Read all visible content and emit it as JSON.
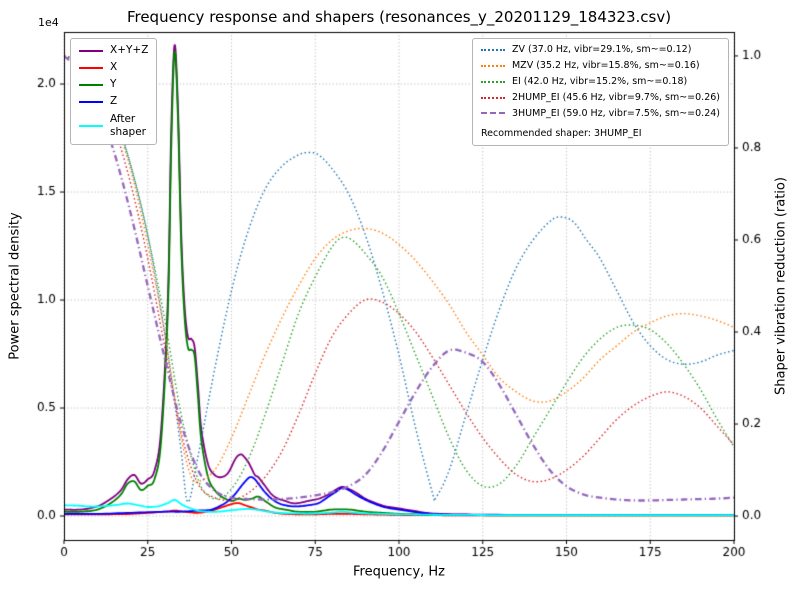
{
  "chart_data": {
    "type": "line",
    "title": "Frequency response and shapers (resonances_y_20201129_184323.csv)",
    "xlabel": "Frequency, Hz",
    "ylabel_left": "Power spectral density",
    "ylabel_right": "Shaper vibration reduction (ratio)",
    "offset_text": "1e4",
    "grid": "dotted",
    "grid_color": "#b8b8b8",
    "xlim": [
      0,
      200
    ],
    "xticks": [
      0,
      25,
      50,
      75,
      100,
      125,
      150,
      175,
      200
    ],
    "xtick_labels": [
      "0",
      "25",
      "50",
      "75",
      "100",
      "125",
      "150",
      "175",
      "200"
    ],
    "ylim_left": [
      -0.111,
      2.241
    ],
    "yticks_left": {
      "values": [
        0.0,
        0.5,
        1.0,
        1.5,
        2.0
      ],
      "labels": [
        "0.0",
        "0.5",
        "1.0",
        "1.5",
        "2.0"
      ]
    },
    "ylim_right": [
      -0.052,
      1.052
    ],
    "yticks_right": {
      "values": [
        0.0,
        0.2,
        0.4,
        0.6,
        0.8,
        1.0
      ],
      "labels": [
        "0.0",
        "0.2",
        "0.4",
        "0.6",
        "0.8",
        "1.0"
      ]
    },
    "legend_psd": {
      "position": "upper left",
      "items": [
        {
          "label": "X+Y+Z",
          "color": "#800080",
          "style": "solid"
        },
        {
          "label": "X",
          "color": "#ff0000",
          "style": "solid"
        },
        {
          "label": "Y",
          "color": "#008000",
          "style": "solid"
        },
        {
          "label": "Z",
          "color": "#0000ff",
          "style": "solid"
        },
        {
          "label": "After\nshaper",
          "color": "#00ffff",
          "style": "solid"
        }
      ]
    },
    "legend_shapers": {
      "position": "upper right",
      "items": [
        {
          "label": "ZV (37.0 Hz, vibr=29.1%, sm~=0.12)",
          "color": "#1f77b4",
          "style": "dotted"
        },
        {
          "label": "MZV (35.2 Hz, vibr=15.8%, sm~=0.16)",
          "color": "#ff7f0e",
          "style": "dotted"
        },
        {
          "label": "EI (42.0 Hz, vibr=15.2%, sm~=0.18)",
          "color": "#2ca02c",
          "style": "dotted"
        },
        {
          "label": "2HUMP_EI (45.6 Hz, vibr=9.7%, sm~=0.26)",
          "color": "#d62728",
          "style": "dotted"
        },
        {
          "label": "3HUMP_EI (59.0 Hz, vibr=7.5%, sm~=0.24)",
          "color": "#9467bd",
          "style": "dashdot"
        }
      ],
      "footer": "Recommended shaper: 3HUMP_EI"
    },
    "series": [
      {
        "name": "X+Y+Z",
        "axis": "left",
        "color": "#800080",
        "style": "solid",
        "width": 1.8,
        "x": [
          0,
          5,
          10,
          14,
          17,
          19,
          21,
          23,
          25,
          27,
          29,
          31,
          32,
          33,
          34,
          35,
          36,
          37,
          38,
          39,
          40,
          41,
          43,
          45,
          47,
          49,
          51,
          52,
          53,
          54,
          55,
          56,
          57,
          58,
          59,
          60,
          62,
          64,
          66,
          68,
          70,
          73,
          76,
          79,
          81,
          83,
          85,
          87,
          90,
          93,
          96,
          100,
          104,
          108,
          112,
          120,
          140,
          160,
          180,
          200
        ],
        "y": [
          0.03,
          0.03,
          0.045,
          0.08,
          0.12,
          0.17,
          0.19,
          0.15,
          0.17,
          0.21,
          0.4,
          1.0,
          1.78,
          2.18,
          1.9,
          1.3,
          0.97,
          0.83,
          0.82,
          0.78,
          0.6,
          0.4,
          0.24,
          0.19,
          0.18,
          0.2,
          0.26,
          0.28,
          0.285,
          0.27,
          0.25,
          0.22,
          0.19,
          0.18,
          0.16,
          0.14,
          0.1,
          0.08,
          0.07,
          0.06,
          0.06,
          0.07,
          0.08,
          0.1,
          0.12,
          0.135,
          0.125,
          0.11,
          0.08,
          0.06,
          0.045,
          0.035,
          0.025,
          0.015,
          0.01,
          0.007,
          0.005,
          0.005,
          0.005,
          0.005
        ]
      },
      {
        "name": "X",
        "axis": "left",
        "color": "#ff0000",
        "style": "solid",
        "width": 1.8,
        "x": [
          0,
          10,
          20,
          30,
          33,
          36,
          40,
          44,
          47,
          50,
          52,
          54,
          56,
          58,
          60,
          63,
          66,
          70,
          75,
          80,
          85,
          90,
          100,
          110,
          120,
          140,
          160,
          180,
          200
        ],
        "y": [
          0.008,
          0.008,
          0.01,
          0.02,
          0.025,
          0.02,
          0.015,
          0.025,
          0.04,
          0.055,
          0.06,
          0.05,
          0.04,
          0.03,
          0.025,
          0.015,
          0.01,
          0.008,
          0.008,
          0.01,
          0.01,
          0.008,
          0.005,
          0.004,
          0.003,
          0.003,
          0.003,
          0.003,
          0.003
        ]
      },
      {
        "name": "Y",
        "axis": "left",
        "color": "#008000",
        "style": "solid",
        "width": 1.8,
        "x": [
          0,
          5,
          10,
          14,
          17,
          19,
          21,
          23,
          25,
          27,
          29,
          31,
          32,
          33,
          34,
          35,
          36,
          37,
          38,
          39,
          40,
          41,
          43,
          45,
          47,
          50,
          52,
          54,
          56,
          58,
          60,
          63,
          66,
          70,
          75,
          80,
          85,
          90,
          95,
          100,
          105,
          110,
          120,
          140,
          160,
          180,
          200
        ],
        "y": [
          0.02,
          0.02,
          0.03,
          0.06,
          0.1,
          0.15,
          0.16,
          0.12,
          0.14,
          0.17,
          0.35,
          0.95,
          1.7,
          2.15,
          1.85,
          1.25,
          0.92,
          0.78,
          0.77,
          0.74,
          0.55,
          0.35,
          0.18,
          0.12,
          0.09,
          0.07,
          0.08,
          0.075,
          0.08,
          0.09,
          0.07,
          0.04,
          0.03,
          0.02,
          0.02,
          0.03,
          0.03,
          0.02,
          0.015,
          0.01,
          0.008,
          0.005,
          0.004,
          0.003,
          0.003,
          0.003,
          0.003
        ]
      },
      {
        "name": "Z",
        "axis": "left",
        "color": "#0000ff",
        "style": "solid",
        "width": 1.8,
        "x": [
          0,
          10,
          20,
          30,
          35,
          40,
          44,
          47,
          49,
          51,
          53,
          55,
          56,
          57,
          58,
          60,
          62,
          64,
          66,
          68,
          70,
          73,
          76,
          79,
          81,
          83,
          85,
          87,
          90,
          93,
          96,
          100,
          104,
          108,
          112,
          120,
          140,
          160,
          180,
          200
        ],
        "y": [
          0.01,
          0.01,
          0.015,
          0.02,
          0.02,
          0.025,
          0.03,
          0.05,
          0.07,
          0.1,
          0.14,
          0.175,
          0.18,
          0.17,
          0.15,
          0.11,
          0.08,
          0.06,
          0.05,
          0.045,
          0.045,
          0.05,
          0.06,
          0.09,
          0.11,
          0.13,
          0.12,
          0.1,
          0.075,
          0.055,
          0.04,
          0.03,
          0.02,
          0.012,
          0.008,
          0.006,
          0.004,
          0.004,
          0.004,
          0.004
        ]
      },
      {
        "name": "After shaper",
        "axis": "left",
        "color": "#00ffff",
        "style": "solid",
        "width": 1.8,
        "x": [
          0,
          4,
          8,
          12,
          16,
          19,
          22,
          25,
          28,
          31,
          33,
          35,
          37,
          40,
          43,
          46,
          49,
          52,
          55,
          58,
          61,
          65,
          70,
          75,
          80,
          83,
          86,
          90,
          95,
          100,
          110,
          120,
          140,
          160,
          180,
          200
        ],
        "y": [
          0.05,
          0.048,
          0.044,
          0.046,
          0.052,
          0.058,
          0.05,
          0.042,
          0.045,
          0.06,
          0.075,
          0.055,
          0.04,
          0.025,
          0.02,
          0.02,
          0.025,
          0.03,
          0.033,
          0.028,
          0.02,
          0.014,
          0.012,
          0.012,
          0.016,
          0.02,
          0.016,
          0.012,
          0.01,
          0.008,
          0.006,
          0.005,
          0.004,
          0.004,
          0.004,
          0.004
        ]
      },
      {
        "name": "ZV",
        "axis": "right",
        "color": "#1f77b4",
        "style": "dotted",
        "width": 1.4,
        "x": [
          0,
          5,
          10,
          15,
          20,
          25,
          30,
          33,
          35,
          37,
          40,
          45,
          50,
          55,
          60,
          65,
          70,
          73,
          76,
          80,
          85,
          90,
          95,
          100,
          105,
          110,
          111,
          115,
          120,
          125,
          130,
          135,
          140,
          145,
          148,
          152,
          156,
          160,
          165,
          170,
          175,
          180,
          185,
          190,
          195,
          200
        ],
        "y": [
          1.0,
          0.99,
          0.955,
          0.875,
          0.76,
          0.61,
          0.4,
          0.25,
          0.14,
          0.03,
          0.13,
          0.32,
          0.49,
          0.62,
          0.71,
          0.76,
          0.785,
          0.79,
          0.785,
          0.755,
          0.7,
          0.61,
          0.49,
          0.35,
          0.19,
          0.05,
          0.04,
          0.1,
          0.22,
          0.34,
          0.45,
          0.54,
          0.6,
          0.64,
          0.65,
          0.64,
          0.6,
          0.56,
          0.49,
          0.42,
          0.37,
          0.34,
          0.33,
          0.335,
          0.35,
          0.36
        ]
      },
      {
        "name": "MZV",
        "axis": "right",
        "color": "#ff7f0e",
        "style": "dotted",
        "width": 1.4,
        "x": [
          0,
          5,
          10,
          15,
          20,
          25,
          30,
          35,
          38,
          40,
          45,
          50,
          55,
          60,
          65,
          70,
          75,
          80,
          85,
          90,
          95,
          100,
          105,
          110,
          115,
          120,
          125,
          130,
          135,
          140,
          145,
          150,
          155,
          160,
          165,
          170,
          175,
          180,
          185,
          190,
          195,
          200
        ],
        "y": [
          1.0,
          0.985,
          0.945,
          0.865,
          0.75,
          0.59,
          0.4,
          0.17,
          0.085,
          0.075,
          0.1,
          0.17,
          0.26,
          0.35,
          0.43,
          0.5,
          0.56,
          0.6,
          0.62,
          0.625,
          0.615,
          0.59,
          0.555,
          0.51,
          0.46,
          0.4,
          0.35,
          0.3,
          0.27,
          0.25,
          0.25,
          0.27,
          0.3,
          0.34,
          0.37,
          0.4,
          0.42,
          0.435,
          0.44,
          0.435,
          0.425,
          0.41
        ]
      },
      {
        "name": "EI",
        "axis": "right",
        "color": "#2ca02c",
        "style": "dotted",
        "width": 1.4,
        "x": [
          0,
          5,
          10,
          15,
          20,
          25,
          30,
          35,
          40,
          44,
          48,
          52,
          56,
          60,
          65,
          70,
          75,
          80,
          83,
          86,
          90,
          95,
          100,
          105,
          110,
          115,
          120,
          125,
          130,
          135,
          140,
          145,
          150,
          155,
          160,
          165,
          170,
          175,
          180,
          185,
          190,
          195,
          200
        ],
        "y": [
          1.0,
          0.985,
          0.945,
          0.87,
          0.76,
          0.61,
          0.43,
          0.22,
          0.08,
          0.04,
          0.045,
          0.08,
          0.14,
          0.22,
          0.33,
          0.44,
          0.52,
          0.585,
          0.605,
          0.6,
          0.57,
          0.52,
          0.44,
          0.35,
          0.26,
          0.17,
          0.1,
          0.065,
          0.07,
          0.11,
          0.17,
          0.23,
          0.29,
          0.345,
          0.385,
          0.41,
          0.415,
          0.405,
          0.375,
          0.33,
          0.275,
          0.21,
          0.15
        ]
      },
      {
        "name": "2HUMP_EI",
        "axis": "right",
        "color": "#d62728",
        "style": "dotted",
        "width": 1.4,
        "x": [
          0,
          5,
          10,
          15,
          20,
          25,
          30,
          35,
          40,
          45,
          50,
          55,
          60,
          65,
          70,
          75,
          80,
          85,
          90,
          95,
          100,
          105,
          110,
          115,
          120,
          125,
          130,
          135,
          140,
          145,
          150,
          155,
          160,
          165,
          170,
          175,
          180,
          185,
          190,
          195,
          200
        ],
        "y": [
          1.0,
          0.98,
          0.93,
          0.845,
          0.72,
          0.56,
          0.37,
          0.18,
          0.07,
          0.04,
          0.035,
          0.05,
          0.085,
          0.14,
          0.22,
          0.31,
          0.39,
          0.44,
          0.47,
          0.465,
          0.44,
          0.4,
          0.345,
          0.285,
          0.225,
          0.17,
          0.125,
          0.09,
          0.075,
          0.08,
          0.1,
          0.13,
          0.17,
          0.21,
          0.24,
          0.26,
          0.27,
          0.26,
          0.235,
          0.195,
          0.155
        ]
      },
      {
        "name": "3HUMP_EI",
        "axis": "right",
        "color": "#9467bd",
        "style": "dashdot",
        "width": 2.3,
        "x": [
          0,
          5,
          10,
          15,
          20,
          25,
          30,
          35,
          40,
          45,
          50,
          55,
          60,
          65,
          70,
          75,
          80,
          85,
          90,
          95,
          100,
          105,
          110,
          115,
          120,
          125,
          130,
          135,
          140,
          145,
          150,
          155,
          160,
          165,
          170,
          175,
          180,
          185,
          190,
          195,
          200
        ],
        "y": [
          1.0,
          0.965,
          0.895,
          0.79,
          0.655,
          0.5,
          0.345,
          0.2,
          0.1,
          0.055,
          0.04,
          0.037,
          0.036,
          0.037,
          0.04,
          0.045,
          0.052,
          0.065,
          0.09,
          0.14,
          0.205,
          0.27,
          0.325,
          0.36,
          0.355,
          0.335,
          0.285,
          0.22,
          0.155,
          0.1,
          0.065,
          0.047,
          0.04,
          0.036,
          0.034,
          0.034,
          0.035,
          0.036,
          0.037,
          0.038,
          0.04
        ]
      }
    ]
  }
}
